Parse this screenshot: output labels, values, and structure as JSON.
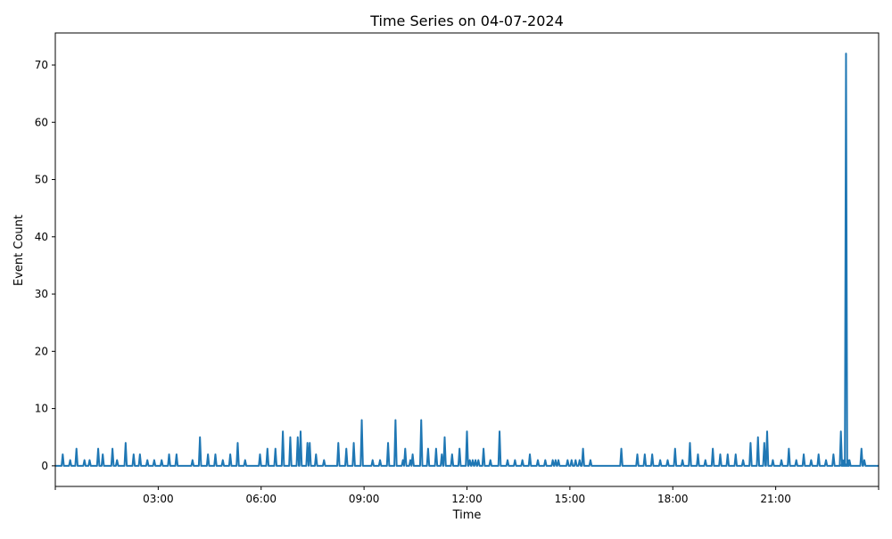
{
  "chart_data": {
    "type": "line",
    "title": "Time Series on 04-07-2024",
    "xlabel": "Time",
    "ylabel": "Event Count",
    "xlim": [
      "00:00",
      "24:00"
    ],
    "ylim": [
      -3.6,
      75.6
    ],
    "x_ticks": [
      "",
      "03:00",
      "06:00",
      "09:00",
      "12:00",
      "15:00",
      "18:00",
      "21:00",
      ""
    ],
    "y_ticks": [
      "0",
      "10",
      "20",
      "30",
      "40",
      "50",
      "60",
      "70"
    ],
    "grid": false,
    "legend": "none",
    "series": [
      {
        "color": "#1f77b4",
        "points": [
          [
            "00:13",
            2
          ],
          [
            "00:26",
            1
          ],
          [
            "00:37",
            3
          ],
          [
            "00:51",
            1
          ],
          [
            "01:00",
            1
          ],
          [
            "01:15",
            3
          ],
          [
            "01:23",
            2
          ],
          [
            "01:40",
            3
          ],
          [
            "01:48",
            1
          ],
          [
            "02:03",
            4
          ],
          [
            "02:17",
            2
          ],
          [
            "02:28",
            2
          ],
          [
            "02:41",
            1
          ],
          [
            "02:53",
            1
          ],
          [
            "03:06",
            1
          ],
          [
            "03:19",
            2
          ],
          [
            "03:32",
            2
          ],
          [
            "04:00",
            1
          ],
          [
            "04:13",
            5
          ],
          [
            "04:27",
            2
          ],
          [
            "04:40",
            2
          ],
          [
            "04:53",
            1
          ],
          [
            "05:06",
            2
          ],
          [
            "05:19",
            4
          ],
          [
            "05:32",
            1
          ],
          [
            "05:58",
            2
          ],
          [
            "06:11",
            3
          ],
          [
            "06:25",
            3
          ],
          [
            "06:38",
            6
          ],
          [
            "06:51",
            5
          ],
          [
            "07:04",
            5
          ],
          [
            "07:09",
            6
          ],
          [
            "07:21",
            4
          ],
          [
            "07:25",
            4
          ],
          [
            "07:36",
            2
          ],
          [
            "07:50",
            1
          ],
          [
            "08:15",
            4
          ],
          [
            "08:29",
            3
          ],
          [
            "08:42",
            4
          ],
          [
            "08:56",
            8
          ],
          [
            "09:15",
            1
          ],
          [
            "09:28",
            1
          ],
          [
            "09:42",
            4
          ],
          [
            "09:55",
            8
          ],
          [
            "10:08",
            1
          ],
          [
            "10:12",
            3
          ],
          [
            "10:21",
            1
          ],
          [
            "10:25",
            2
          ],
          [
            "10:40",
            8
          ],
          [
            "10:52",
            3
          ],
          [
            "11:06",
            3
          ],
          [
            "11:16",
            2
          ],
          [
            "11:21",
            5
          ],
          [
            "11:34",
            2
          ],
          [
            "11:47",
            3
          ],
          [
            "12:00",
            6
          ],
          [
            "12:05",
            1
          ],
          [
            "12:10",
            1
          ],
          [
            "12:15",
            1
          ],
          [
            "12:20",
            1
          ],
          [
            "12:29",
            3
          ],
          [
            "12:41",
            1
          ],
          [
            "12:57",
            6
          ],
          [
            "13:11",
            1
          ],
          [
            "13:24",
            1
          ],
          [
            "13:37",
            1
          ],
          [
            "13:50",
            2
          ],
          [
            "14:04",
            1
          ],
          [
            "14:17",
            1
          ],
          [
            "14:30",
            1
          ],
          [
            "14:35",
            1
          ],
          [
            "14:40",
            1
          ],
          [
            "14:56",
            1
          ],
          [
            "15:03",
            1
          ],
          [
            "15:10",
            1
          ],
          [
            "15:17",
            1
          ],
          [
            "15:23",
            3
          ],
          [
            "15:36",
            1
          ],
          [
            "16:30",
            3
          ],
          [
            "16:58",
            2
          ],
          [
            "17:11",
            2
          ],
          [
            "17:24",
            2
          ],
          [
            "17:38",
            1
          ],
          [
            "17:51",
            1
          ],
          [
            "18:04",
            3
          ],
          [
            "18:17",
            1
          ],
          [
            "18:30",
            4
          ],
          [
            "18:44",
            2
          ],
          [
            "18:57",
            1
          ],
          [
            "19:10",
            3
          ],
          [
            "19:23",
            2
          ],
          [
            "19:36",
            2
          ],
          [
            "19:50",
            2
          ],
          [
            "20:03",
            1
          ],
          [
            "20:16",
            4
          ],
          [
            "20:29",
            5
          ],
          [
            "20:40",
            4
          ],
          [
            "20:45",
            6
          ],
          [
            "20:55",
            1
          ],
          [
            "21:10",
            1
          ],
          [
            "21:23",
            3
          ],
          [
            "21:36",
            1
          ],
          [
            "21:49",
            2
          ],
          [
            "22:02",
            1
          ],
          [
            "22:15",
            2
          ],
          [
            "22:28",
            1
          ],
          [
            "22:41",
            2
          ],
          [
            "22:54",
            6
          ],
          [
            "22:57",
            1
          ],
          [
            "23:00",
            1
          ],
          [
            "23:03",
            72
          ],
          [
            "23:06",
            1
          ],
          [
            "23:09",
            1
          ],
          [
            "23:30",
            3
          ],
          [
            "23:35",
            1
          ]
        ]
      }
    ]
  }
}
